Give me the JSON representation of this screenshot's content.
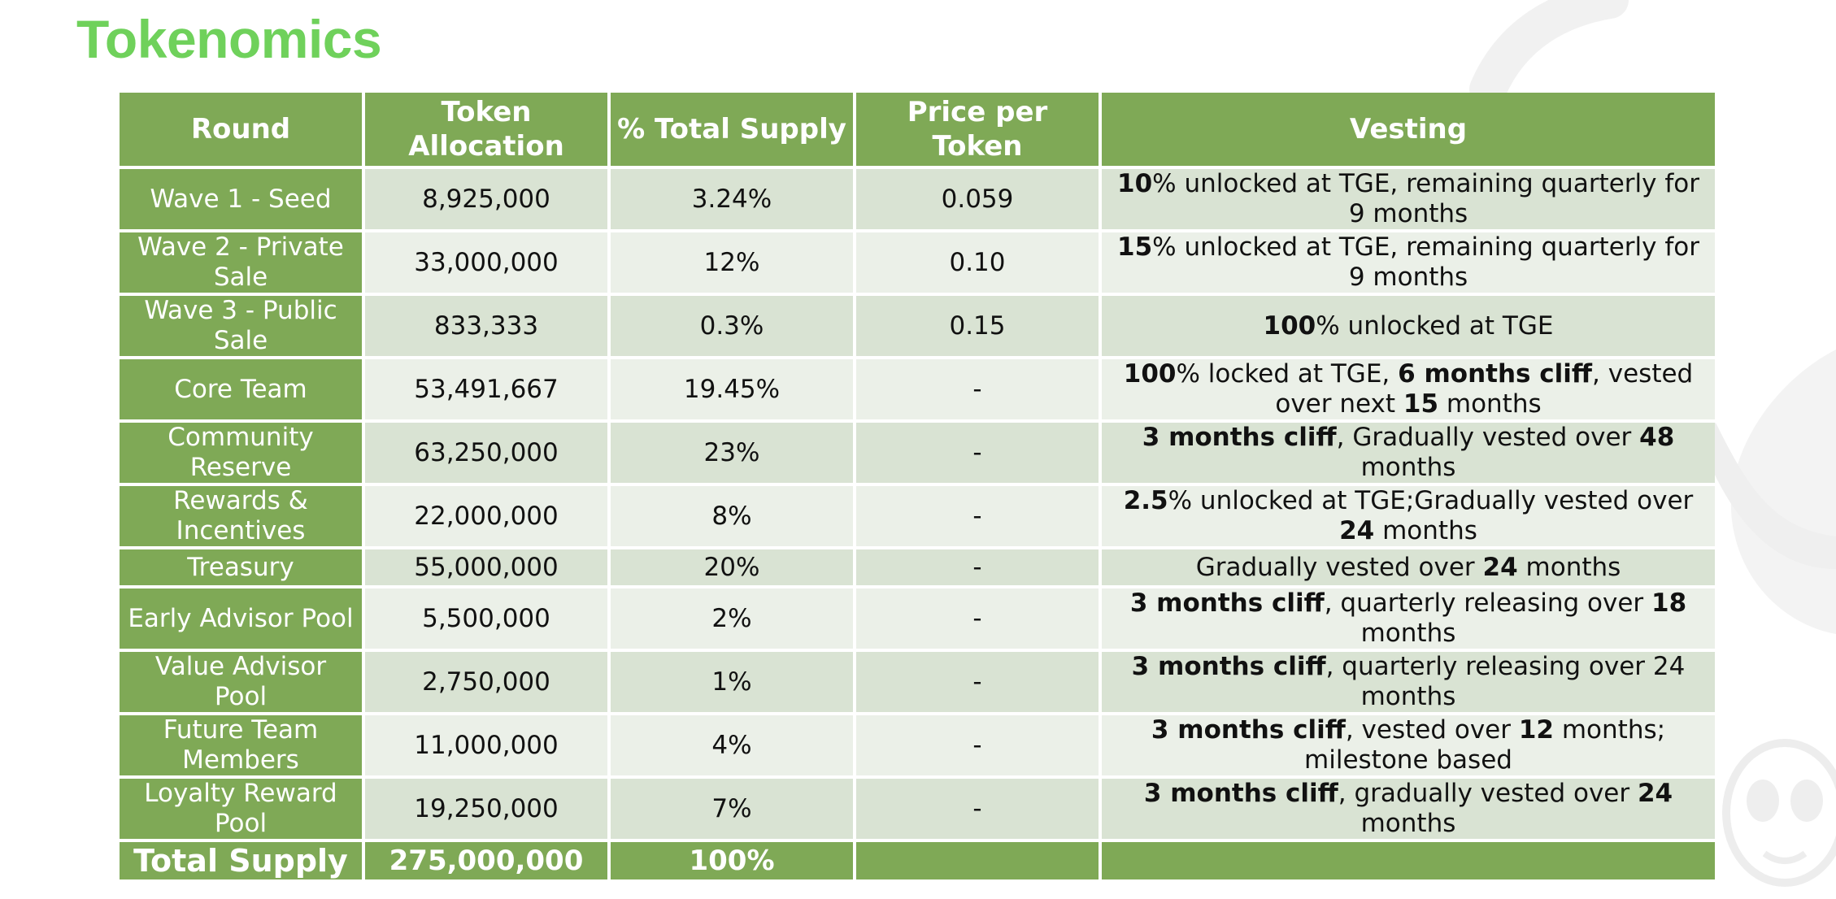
{
  "title": "Tokenomics",
  "colors": {
    "title": "#6fd15b",
    "header_bg": "#7fa956",
    "row_odd_bg": "#d9e3d3",
    "row_even_bg": "#ebf0e8"
  },
  "table": {
    "headers": [
      "Round",
      "Token Allocation",
      "% Total Supply",
      "Price per Token",
      "Vesting"
    ],
    "rows": [
      {
        "round": "Wave 1 - Seed",
        "allocation": "8,925,000",
        "percent": "3.24%",
        "price": "0.059",
        "vesting": [
          {
            "t": "10",
            "b": true
          },
          {
            "t": "% unlocked at TGE, remaining quarterly for 9 months",
            "b": false
          }
        ]
      },
      {
        "round": "Wave 2 - Private Sale",
        "allocation": "33,000,000",
        "percent": "12%",
        "price": "0.10",
        "vesting": [
          {
            "t": "15",
            "b": true
          },
          {
            "t": "% unlocked at TGE, remaining quarterly for 9 months",
            "b": false
          }
        ]
      },
      {
        "round": "Wave 3 - Public Sale",
        "allocation": "833,333",
        "percent": "0.3%",
        "price": "0.15",
        "vesting": [
          {
            "t": "100",
            "b": true
          },
          {
            "t": "% unlocked at TGE",
            "b": false
          }
        ]
      },
      {
        "round": "Core Team",
        "allocation": "53,491,667",
        "percent": "19.45%",
        "price": "-",
        "vesting": [
          {
            "t": "100",
            "b": true
          },
          {
            "t": "% locked at TGE, ",
            "b": false
          },
          {
            "t": "6 months cliff",
            "b": true
          },
          {
            "t": ", vested over next ",
            "b": false
          },
          {
            "t": "15",
            "b": true
          },
          {
            "t": " months",
            "b": false
          }
        ]
      },
      {
        "round": "Community Reserve",
        "allocation": "63,250,000",
        "percent": "23%",
        "price": "-",
        "vesting": [
          {
            "t": "3 months cliff",
            "b": true
          },
          {
            "t": ", Gradually vested over ",
            "b": false
          },
          {
            "t": "48",
            "b": true
          },
          {
            "t": " months",
            "b": false
          }
        ]
      },
      {
        "round": "Rewards & Incentives",
        "allocation": "22,000,000",
        "percent": "8%",
        "price": "-",
        "vesting": [
          {
            "t": "2.5",
            "b": true
          },
          {
            "t": "% unlocked at TGE;Gradually vested over ",
            "b": false
          },
          {
            "t": "24",
            "b": true
          },
          {
            "t": " months",
            "b": false
          }
        ]
      },
      {
        "round": "Treasury",
        "allocation": "55,000,000",
        "percent": "20%",
        "price": "-",
        "vesting": [
          {
            "t": "Gradually vested over ",
            "b": false
          },
          {
            "t": "24",
            "b": true
          },
          {
            "t": " months",
            "b": false
          }
        ]
      },
      {
        "round": "Early Advisor Pool",
        "allocation": "5,500,000",
        "percent": "2%",
        "price": "-",
        "vesting": [
          {
            "t": "3 months cliff",
            "b": true
          },
          {
            "t": ", quarterly releasing over ",
            "b": false
          },
          {
            "t": "18",
            "b": true
          },
          {
            "t": " months",
            "b": false
          }
        ]
      },
      {
        "round": "Value Advisor Pool",
        "allocation": "2,750,000",
        "percent": "1%",
        "price": "-",
        "vesting": [
          {
            "t": "3 months cliff",
            "b": true
          },
          {
            "t": ", quarterly releasing over 24 months",
            "b": false
          }
        ]
      },
      {
        "round": "Future Team Members",
        "allocation": "11,000,000",
        "percent": "4%",
        "price": "-",
        "vesting": [
          {
            "t": "3 months cliff",
            "b": true
          },
          {
            "t": ", vested over ",
            "b": false
          },
          {
            "t": "12",
            "b": true
          },
          {
            "t": " months; milestone based",
            "b": false
          }
        ]
      },
      {
        "round": "Loyalty Reward Pool",
        "allocation": "19,250,000",
        "percent": "7%",
        "price": "-",
        "vesting": [
          {
            "t": "3 months cliff",
            "b": true
          },
          {
            "t": ", gradually vested over ",
            "b": false
          },
          {
            "t": "24",
            "b": true
          },
          {
            "t": " months",
            "b": false
          }
        ]
      }
    ],
    "total": {
      "label": "Total Supply",
      "allocation": "275,000,000",
      "percent": "100%",
      "price": "",
      "vesting": ""
    }
  }
}
